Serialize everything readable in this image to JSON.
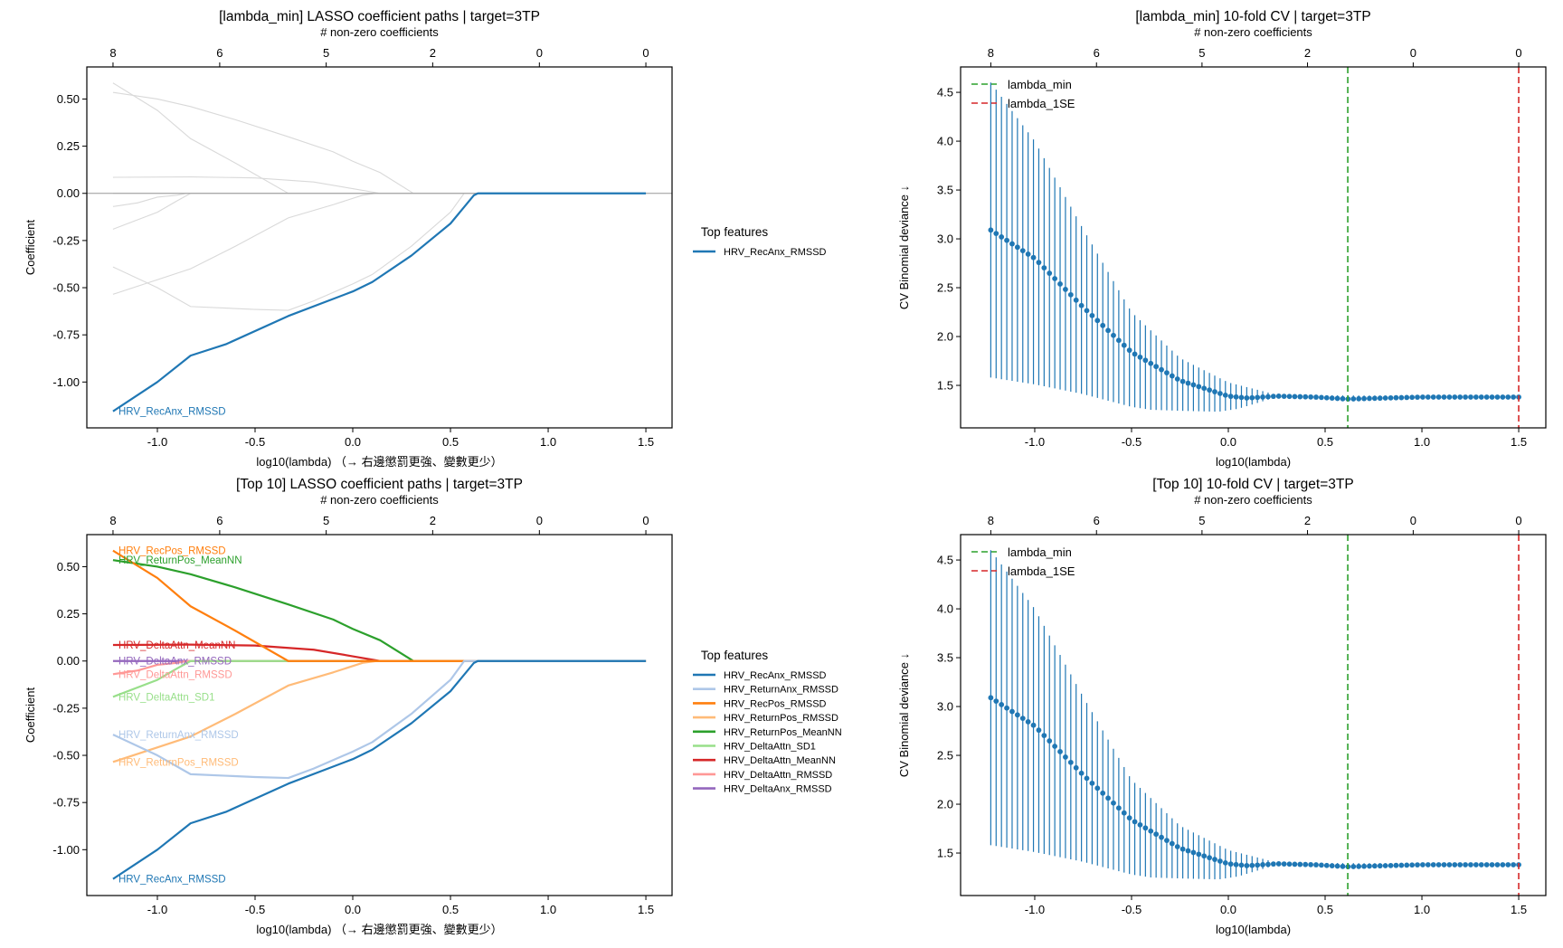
{
  "figure": {
    "secondary_axis_label": "# non-zero coefficients",
    "legend_title": "Top features"
  },
  "chart_data": [
    {
      "id": "path_min",
      "type": "line",
      "title": "[lambda_min] LASSO coefficient paths  |  target=3TP",
      "xlabel": "log10(lambda)  （→ 右邊懲罰更強、變數更少）",
      "ylabel": "Coefficient",
      "xlim": [
        -1.361,
        1.634
      ],
      "ylim": [
        -1.243,
        0.67
      ],
      "xticks": [
        -1.0,
        -0.5,
        0.0,
        0.5,
        1.0,
        1.5
      ],
      "xtick_labels": [
        "-1.0",
        "-0.5",
        "0.0",
        "0.5",
        "1.0",
        "1.5"
      ],
      "yticks": [
        0.5,
        0.25,
        0.0,
        -0.25,
        -0.5,
        -0.75,
        -1.0
      ],
      "ytick_labels": [
        "0.50",
        "0.25",
        "0.00",
        "-0.25",
        "-0.50",
        "-0.75",
        "-1.00"
      ],
      "top_ticks": [
        -1.227,
        -0.681,
        -0.136,
        0.409,
        0.955,
        1.5
      ],
      "top_tick_labels": [
        "8",
        "6",
        "5",
        "2",
        "0",
        "0"
      ],
      "legend": [
        "HRV_RecAnx_RMSSD"
      ],
      "legend_placement": "outside-right",
      "highlight": [
        "HRV_RecAnx_RMSSD"
      ],
      "label_series": [
        "HRV_RecAnx_RMSSD"
      ]
    },
    {
      "id": "cv_min",
      "type": "scatter",
      "title": "[lambda_min] 10-fold CV  |  target=3TP",
      "xlabel": "log10(lambda)",
      "ylabel": "CV Binomial deviance ↓",
      "xlim": [
        -1.383,
        1.64
      ],
      "ylim": [
        1.065,
        4.76
      ],
      "xticks": [
        -1.0,
        -0.5,
        0.0,
        0.5,
        1.0,
        1.5
      ],
      "xtick_labels": [
        "-1.0",
        "-0.5",
        "0.0",
        "0.5",
        "1.0",
        "1.5"
      ],
      "yticks": [
        1.5,
        2.0,
        2.5,
        3.0,
        3.5,
        4.0,
        4.5
      ],
      "ytick_labels": [
        "1.5",
        "2.0",
        "2.5",
        "3.0",
        "3.5",
        "4.0",
        "4.5"
      ],
      "top_ticks": [
        -1.227,
        -0.681,
        -0.136,
        0.409,
        0.955,
        1.5
      ],
      "top_tick_labels": [
        "8",
        "6",
        "5",
        "2",
        "0",
        "0"
      ],
      "vlines": [
        {
          "name": "lambda_min",
          "x": 0.617,
          "color": "#2ca02c"
        },
        {
          "name": "lambda_1SE",
          "x": 1.5,
          "color": "#d62728"
        }
      ],
      "legend": [
        "lambda_min",
        "lambda_1SE"
      ],
      "legend_placement": "upper-left"
    },
    {
      "id": "path_top10",
      "type": "line",
      "title": "[Top 10] LASSO coefficient paths  |  target=3TP",
      "xlabel": "log10(lambda)  （→ 右邊懲罰更強、變數更少）",
      "ylabel": "Coefficient",
      "xlim": [
        -1.361,
        1.634
      ],
      "ylim": [
        -1.243,
        0.67
      ],
      "xticks": [
        -1.0,
        -0.5,
        0.0,
        0.5,
        1.0,
        1.5
      ],
      "xtick_labels": [
        "-1.0",
        "-0.5",
        "0.0",
        "0.5",
        "1.0",
        "1.5"
      ],
      "yticks": [
        0.5,
        0.25,
        0.0,
        -0.25,
        -0.5,
        -0.75,
        -1.0
      ],
      "ytick_labels": [
        "0.50",
        "0.25",
        "0.00",
        "-0.25",
        "-0.50",
        "-0.75",
        "-1.00"
      ],
      "top_ticks": [
        -1.227,
        -0.681,
        -0.136,
        0.409,
        0.955,
        1.5
      ],
      "top_tick_labels": [
        "8",
        "6",
        "5",
        "2",
        "0",
        "0"
      ],
      "legend": [
        "HRV_RecAnx_RMSSD",
        "HRV_ReturnAnx_RMSSD",
        "HRV_RecPos_RMSSD",
        "HRV_ReturnPos_RMSSD",
        "HRV_ReturnPos_MeanNN",
        "HRV_DeltaAttn_SD1",
        "HRV_DeltaAttn_MeanNN",
        "HRV_DeltaAttn_RMSSD",
        "HRV_DeltaAnx_RMSSD"
      ],
      "legend_placement": "outside-right",
      "highlight": [
        "HRV_RecAnx_RMSSD",
        "HRV_ReturnAnx_RMSSD",
        "HRV_RecPos_RMSSD",
        "HRV_ReturnPos_RMSSD",
        "HRV_ReturnPos_MeanNN",
        "HRV_DeltaAttn_SD1",
        "HRV_DeltaAttn_MeanNN",
        "HRV_DeltaAttn_RMSSD",
        "HRV_DeltaAnx_RMSSD"
      ],
      "label_series": [
        "HRV_RecPos_RMSSD",
        "HRV_ReturnPos_MeanNN",
        "HRV_DeltaAttn_MeanNN",
        "HRV_DeltaAnx_RMSSD",
        "HRV_DeltaAttn_RMSSD",
        "HRV_DeltaAttn_SD1",
        "HRV_ReturnAnx_RMSSD",
        "HRV_ReturnPos_RMSSD",
        "HRV_RecAnx_RMSSD"
      ]
    },
    {
      "id": "cv_top10",
      "type": "scatter",
      "title": "[Top 10] 10-fold CV  |  target=3TP",
      "xlabel": "log10(lambda)",
      "ylabel": "CV Binomial deviance ↓",
      "xlim": [
        -1.383,
        1.64
      ],
      "ylim": [
        1.065,
        4.76
      ],
      "xticks": [
        -1.0,
        -0.5,
        0.0,
        0.5,
        1.0,
        1.5
      ],
      "xtick_labels": [
        "-1.0",
        "-0.5",
        "0.0",
        "0.5",
        "1.0",
        "1.5"
      ],
      "yticks": [
        1.5,
        2.0,
        2.5,
        3.0,
        3.5,
        4.0,
        4.5
      ],
      "ytick_labels": [
        "1.5",
        "2.0",
        "2.5",
        "3.0",
        "3.5",
        "4.0",
        "4.5"
      ],
      "top_ticks": [
        -1.227,
        -0.681,
        -0.136,
        0.409,
        0.955,
        1.5
      ],
      "top_tick_labels": [
        "8",
        "6",
        "5",
        "2",
        "0",
        "0"
      ],
      "vlines": [
        {
          "name": "lambda_min",
          "x": 0.617,
          "color": "#2ca02c"
        },
        {
          "name": "lambda_1SE",
          "x": 1.5,
          "color": "#d62728"
        }
      ],
      "legend": [
        "lambda_min",
        "lambda_1SE"
      ],
      "legend_placement": "upper-left"
    }
  ],
  "series": {
    "HRV_RecAnx_RMSSD": {
      "color": "#1f77b4",
      "x": [
        -1.227,
        -1.0,
        -0.83,
        -0.65,
        -0.33,
        0.0,
        0.1,
        0.3,
        0.5,
        0.62,
        0.64,
        1.5
      ],
      "y": [
        -1.155,
        -1.0,
        -0.86,
        -0.8,
        -0.65,
        -0.52,
        -0.47,
        -0.33,
        -0.16,
        -0.01,
        0.0,
        0.0
      ]
    },
    "HRV_ReturnAnx_RMSSD": {
      "color": "#aec7e8",
      "x": [
        -1.227,
        -1.0,
        -0.83,
        -0.5,
        -0.33,
        -0.2,
        0.0,
        0.1,
        0.3,
        0.5,
        0.57,
        1.5
      ],
      "y": [
        -0.39,
        -0.5,
        -0.6,
        -0.615,
        -0.62,
        -0.57,
        -0.48,
        -0.43,
        -0.28,
        -0.1,
        0.0,
        0.0
      ]
    },
    "HRV_RecPos_RMSSD": {
      "color": "#ff7f0e",
      "x": [
        -1.227,
        -1.0,
        -0.83,
        -0.6,
        -0.33,
        1.5
      ],
      "y": [
        0.585,
        0.44,
        0.29,
        0.16,
        0.0,
        0.0
      ]
    },
    "HRV_ReturnPos_RMSSD": {
      "color": "#ffbb78",
      "x": [
        -1.227,
        -0.83,
        -0.6,
        -0.33,
        -0.1,
        0.05,
        0.12,
        1.5
      ],
      "y": [
        -0.535,
        -0.4,
        -0.28,
        -0.13,
        -0.06,
        -0.01,
        0.0,
        0.0
      ]
    },
    "HRV_ReturnPos_MeanNN": {
      "color": "#2ca02c",
      "x": [
        -1.227,
        -1.0,
        -0.83,
        -0.6,
        -0.33,
        -0.1,
        0.0,
        0.14,
        0.31,
        1.5
      ],
      "y": [
        0.535,
        0.5,
        0.46,
        0.39,
        0.3,
        0.22,
        0.17,
        0.11,
        0.0,
        0.0
      ]
    },
    "HRV_DeltaAttn_SD1": {
      "color": "#98df8a",
      "x": [
        -1.227,
        -1.0,
        -0.9,
        -0.83,
        1.5
      ],
      "y": [
        -0.19,
        -0.1,
        -0.04,
        0.0,
        0.0
      ]
    },
    "HRV_DeltaAttn_MeanNN": {
      "color": "#d62728",
      "x": [
        -1.227,
        -0.83,
        -0.5,
        -0.2,
        0.0,
        0.14,
        1.5
      ],
      "y": [
        0.085,
        0.087,
        0.082,
        0.06,
        0.025,
        0.0,
        0.0
      ]
    },
    "HRV_DeltaAttn_RMSSD": {
      "color": "#ff9896",
      "x": [
        -1.227,
        -1.1,
        -1.0,
        -0.9,
        -0.85,
        1.5
      ],
      "y": [
        -0.07,
        -0.05,
        -0.02,
        -0.01,
        0.0,
        0.0
      ]
    },
    "HRV_DeltaAnx_RMSSD": {
      "color": "#9467bd",
      "x": [
        -1.227,
        1.5
      ],
      "y": [
        0.0,
        0.0
      ]
    }
  },
  "cv": {
    "color": "#1f77b4",
    "x_start": -1.227,
    "x_end": 1.5,
    "n_points": 100,
    "mean_knots": {
      "x": [
        -1.227,
        -1.0,
        -0.75,
        -0.5,
        -0.25,
        0.0,
        0.1,
        0.25,
        0.45,
        0.617,
        0.8,
        1.0,
        1.5
      ],
      "y": [
        3.09,
        2.8,
        2.3,
        1.84,
        1.55,
        1.39,
        1.37,
        1.39,
        1.38,
        1.36,
        1.37,
        1.38,
        1.38
      ]
    },
    "upper_knots": {
      "x": [
        -1.227,
        -1.0,
        -0.75,
        -0.5,
        -0.25,
        0.0,
        0.2,
        0.25,
        1.5
      ],
      "y": [
        4.6,
        4.0,
        3.1,
        2.25,
        1.78,
        1.53,
        1.43,
        1.4,
        1.39
      ]
    },
    "lower_knots": {
      "x": [
        -1.227,
        -1.0,
        -0.75,
        -0.5,
        -0.4,
        -0.25,
        -0.05,
        0.05,
        0.2,
        0.25,
        1.5
      ],
      "y": [
        1.58,
        1.51,
        1.41,
        1.28,
        1.25,
        1.24,
        1.23,
        1.26,
        1.35,
        1.38,
        1.37
      ]
    }
  }
}
